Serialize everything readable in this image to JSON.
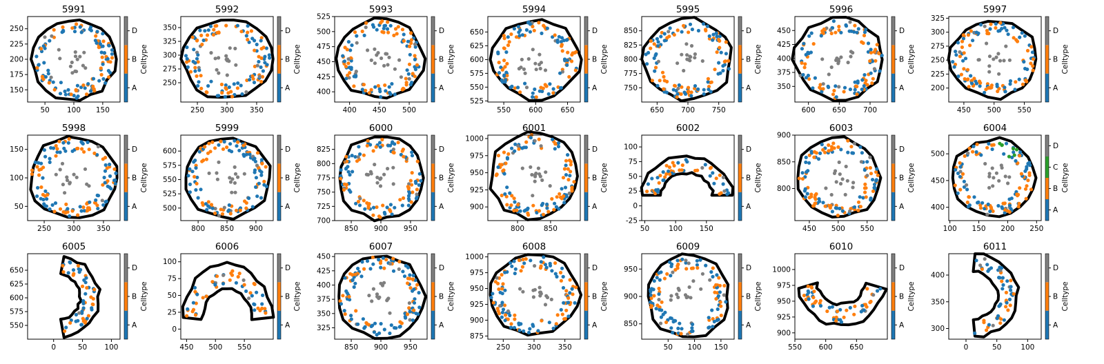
{
  "colors": {
    "A": "#1f77b4",
    "B": "#ff7f0e",
    "C": "#2ca02c",
    "D": "#7f7f7f",
    "boundary": "#000000"
  },
  "chart_data": [
    {
      "type": "scatter",
      "title": "5991",
      "xlim": [
        20,
        180
      ],
      "ylim": [
        130,
        270
      ],
      "xticks": [
        50,
        100,
        150
      ],
      "yticks": [
        150,
        175,
        200,
        225,
        250
      ],
      "colorbar_label": "Celltype",
      "categories": [
        "A",
        "B",
        "D"
      ],
      "shape": "ring",
      "center": [
        100,
        200
      ],
      "radius": [
        65,
        60
      ]
    },
    {
      "type": "scatter",
      "title": "5992",
      "xlim": [
        222,
        378
      ],
      "ylim": [
        215,
        370
      ],
      "xticks": [
        250,
        300,
        350
      ],
      "yticks": [
        250,
        275,
        300,
        325,
        350
      ],
      "colorbar_label": "Celltype",
      "categories": [
        "A",
        "B",
        "D"
      ],
      "shape": "ring",
      "center": [
        300,
        293
      ],
      "radius": [
        68,
        65
      ]
    },
    {
      "type": "scatter",
      "title": "5993",
      "xlim": [
        375,
        530
      ],
      "ylim": [
        383,
        525
      ],
      "xticks": [
        400,
        450,
        500
      ],
      "yticks": [
        400,
        425,
        450,
        475,
        500,
        525
      ],
      "colorbar_label": "Celltype",
      "categories": [
        "A",
        "B",
        "D"
      ],
      "shape": "ring",
      "center": [
        452,
        455
      ],
      "radius": [
        65,
        60
      ]
    },
    {
      "type": "scatter",
      "title": "5994",
      "xlim": [
        525,
        670
      ],
      "ylim": [
        523,
        678
      ],
      "xticks": [
        550,
        600,
        650
      ],
      "yticks": [
        525,
        550,
        575,
        600,
        625,
        650
      ],
      "colorbar_label": "Celltype",
      "categories": [
        "A",
        "B",
        "D"
      ],
      "shape": "ring",
      "center": [
        600,
        600
      ],
      "radius": [
        62,
        65
      ]
    },
    {
      "type": "scatter",
      "title": "5995",
      "xlim": [
        625,
        775
      ],
      "ylim": [
        725,
        875
      ],
      "xticks": [
        650,
        700,
        750
      ],
      "yticks": [
        750,
        775,
        800,
        825,
        850
      ],
      "colorbar_label": "Celltype",
      "categories": [
        "A",
        "B",
        "D"
      ],
      "shape": "ring",
      "center": [
        700,
        800
      ],
      "radius": [
        65,
        65
      ]
    },
    {
      "type": "scatter",
      "title": "5996",
      "xlim": [
        578,
        728
      ],
      "ylim": [
        322,
        475
      ],
      "xticks": [
        600,
        650,
        700
      ],
      "yticks": [
        350,
        375,
        400,
        425,
        450
      ],
      "colorbar_label": "Celltype",
      "categories": [
        "A",
        "B",
        "D"
      ],
      "shape": "ring",
      "center": [
        650,
        398
      ],
      "radius": [
        66,
        66
      ]
    },
    {
      "type": "scatter",
      "title": "5997",
      "xlim": [
        425,
        578
      ],
      "ylim": [
        175,
        328
      ],
      "xticks": [
        450,
        500,
        550
      ],
      "yticks": [
        200,
        225,
        250,
        275,
        300,
        325
      ],
      "colorbar_label": "Celltype",
      "categories": [
        "A",
        "B",
        "D"
      ],
      "shape": "ring",
      "center": [
        500,
        252
      ],
      "radius": [
        65,
        63
      ]
    },
    {
      "type": "scatter",
      "title": "5998",
      "xlim": [
        222,
        378
      ],
      "ylim": [
        25,
        175
      ],
      "xticks": [
        250,
        300,
        350
      ],
      "yticks": [
        50,
        100,
        150
      ],
      "colorbar_label": "Celltype",
      "categories": [
        "A",
        "B",
        "D"
      ],
      "shape": "ring",
      "center": [
        300,
        100
      ],
      "radius": [
        68,
        65
      ]
    },
    {
      "type": "scatter",
      "title": "5999",
      "xlim": [
        770,
        930
      ],
      "ylim": [
        478,
        628
      ],
      "xticks": [
        800,
        850,
        900
      ],
      "yticks": [
        500,
        525,
        550,
        575,
        600
      ],
      "colorbar_label": "Celltype",
      "categories": [
        "A",
        "B",
        "D"
      ],
      "shape": "ring",
      "center": [
        850,
        553
      ],
      "radius": [
        68,
        65
      ]
    },
    {
      "type": "scatter",
      "title": "6000",
      "xlim": [
        822,
        978
      ],
      "ylim": [
        700,
        850
      ],
      "xticks": [
        850,
        900,
        950
      ],
      "yticks": [
        700,
        725,
        750,
        775,
        800,
        825
      ],
      "colorbar_label": "Celltype",
      "categories": [
        "A",
        "B",
        "D"
      ],
      "shape": "ring",
      "center": [
        900,
        775
      ],
      "radius": [
        66,
        66
      ]
    },
    {
      "type": "scatter",
      "title": "6001",
      "xlim": [
        755,
        895
      ],
      "ylim": [
        880,
        1005
      ],
      "xticks": [
        800,
        850
      ],
      "yticks": [
        900,
        925,
        950,
        975,
        1000
      ],
      "colorbar_label": "Celltype",
      "categories": [
        "A",
        "B",
        "D"
      ],
      "shape": "ring",
      "center": [
        825,
        945
      ],
      "radius": [
        60,
        57
      ]
    },
    {
      "type": "scatter",
      "title": "6002",
      "xlim": [
        45,
        195
      ],
      "ylim": [
        -25,
        120
      ],
      "xticks": [
        50,
        100,
        150
      ],
      "yticks": [
        -25,
        0,
        25,
        50,
        75,
        100
      ],
      "colorbar_label": "Celltype",
      "categories": [
        "A",
        "B",
        "D"
      ],
      "shape": "arc",
      "center": [
        118,
        18
      ],
      "radius": [
        58,
        52
      ],
      "arc_deg": [
        0,
        180
      ]
    },
    {
      "type": "scatter",
      "title": "6003",
      "xlim": [
        425,
        585
      ],
      "ylim": [
        740,
        900
      ],
      "xticks": [
        450,
        500,
        550
      ],
      "yticks": [
        800,
        850,
        900
      ],
      "colorbar_label": "Celltype",
      "categories": [
        "A",
        "B",
        "D"
      ],
      "shape": "ring",
      "center": [
        500,
        820
      ],
      "radius": [
        66,
        68
      ]
    },
    {
      "type": "scatter",
      "title": "6004",
      "xlim": [
        98,
        258
      ],
      "ylim": [
        375,
        535
      ],
      "xticks": [
        100,
        150,
        200,
        250
      ],
      "yticks": [
        400,
        450,
        500
      ],
      "colorbar_label": "Celltype",
      "categories": [
        "A",
        "B",
        "C",
        "D"
      ],
      "shape": "ring",
      "center": [
        175,
        455
      ],
      "radius": [
        66,
        66
      ]
    },
    {
      "type": "scatter",
      "title": "6005",
      "xlim": [
        -45,
        115
      ],
      "ylim": [
        525,
        680
      ],
      "xticks": [
        0,
        50,
        100
      ],
      "yticks": [
        550,
        575,
        600,
        625,
        650
      ],
      "colorbar_label": "Celltype",
      "categories": [
        "A",
        "B",
        "D"
      ],
      "shape": "arc",
      "center": [
        5,
        602
      ],
      "radius": [
        58,
        58
      ],
      "arc_deg": [
        -80,
        80
      ]
    },
    {
      "type": "scatter",
      "title": "6006",
      "xlim": [
        440,
        600
      ],
      "ylim": [
        -15,
        112
      ],
      "xticks": [
        450,
        500,
        550
      ],
      "yticks": [
        0,
        25,
        50,
        75,
        100
      ],
      "colorbar_label": "Celltype",
      "categories": [
        "A",
        "B",
        "D"
      ],
      "shape": "arc",
      "center": [
        520,
        10
      ],
      "radius": [
        62,
        68
      ],
      "arc_deg": [
        5,
        175
      ]
    },
    {
      "type": "scatter",
      "title": "6007",
      "xlim": [
        822,
        978
      ],
      "ylim": [
        305,
        455
      ],
      "xticks": [
        850,
        900,
        950
      ],
      "yticks": [
        325,
        350,
        375,
        400,
        425,
        450
      ],
      "colorbar_label": "Celltype",
      "categories": [
        "A",
        "B",
        "D"
      ],
      "shape": "ring",
      "center": [
        900,
        380
      ],
      "radius": [
        66,
        66
      ]
    },
    {
      "type": "scatter",
      "title": "6008",
      "xlim": [
        225,
        375
      ],
      "ylim": [
        870,
        1005
      ],
      "xticks": [
        250,
        300,
        350
      ],
      "yticks": [
        875,
        900,
        925,
        950,
        975,
        1000
      ],
      "colorbar_label": "Celltype",
      "categories": [
        "A",
        "B",
        "D"
      ],
      "shape": "ring",
      "center": [
        300,
        940
      ],
      "radius": [
        66,
        58
      ]
    },
    {
      "type": "scatter",
      "title": "6009",
      "xlim": [
        0,
        175
      ],
      "ylim": [
        822,
        978
      ],
      "xticks": [
        50,
        100,
        150
      ],
      "yticks": [
        850,
        900,
        950
      ],
      "colorbar_label": "Celltype",
      "categories": [
        "A",
        "B",
        "D"
      ],
      "shape": "ring",
      "center": [
        88,
        900
      ],
      "radius": [
        70,
        68
      ]
    },
    {
      "type": "scatter",
      "title": "6010",
      "xlim": [
        550,
        700
      ],
      "ylim": [
        890,
        1025
      ],
      "xticks": [
        550,
        600,
        650
      ],
      "yticks": [
        900,
        925,
        950,
        975,
        1000
      ],
      "colorbar_label": "Celltype",
      "categories": [
        "A",
        "B",
        "D"
      ],
      "shape": "arc",
      "center": [
        625,
        990
      ],
      "radius": [
        58,
        62
      ],
      "arc_deg": [
        195,
        345
      ]
    },
    {
      "type": "scatter",
      "title": "6011",
      "xlim": [
        -28,
        122
      ],
      "ylim": [
        280,
        440
      ],
      "xticks": [
        0,
        50,
        100
      ],
      "yticks": [
        300,
        350,
        400
      ],
      "colorbar_label": "Celltype",
      "categories": [
        "A",
        "B",
        "D"
      ],
      "shape": "arc",
      "center": [
        8,
        362
      ],
      "radius": [
        60,
        62
      ],
      "arc_deg": [
        -85,
        85
      ]
    }
  ]
}
